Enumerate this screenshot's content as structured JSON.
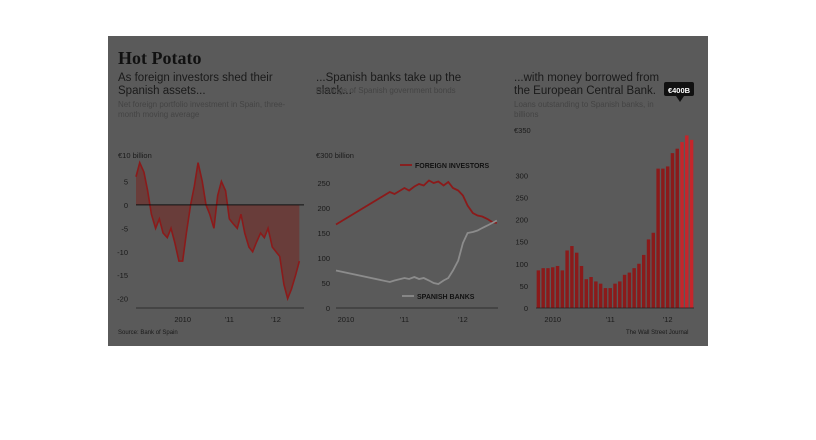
{
  "headline": "Hot Potato",
  "panels": [
    {
      "subtitle": "As foreign investors shed their Spanish assets...",
      "note": "Net foreign portfolio investment in Spain, three-month moving average",
      "unit_label": "€10 billion",
      "source": "Source: Bank of Spain"
    },
    {
      "subtitle": "...Spanish banks take up the slack...",
      "note": "Holdings of Spanish government bonds",
      "unit_label": "€300 billion",
      "legend": [
        "FOREIGN INVESTORS",
        "SPANISH BANKS"
      ]
    },
    {
      "subtitle": "...with money borrowed from the European Central Bank.",
      "note": "Loans outstanding to Spanish banks, in billions",
      "unit_label": "€350",
      "callout": "€400B",
      "credit": "The Wall Street Journal"
    }
  ],
  "colors": {
    "background": "#5a5a5a",
    "red": "#8b1a1a",
    "gray_line": "#8c8c8c",
    "zero_line": "#111111"
  },
  "chart_data": [
    {
      "type": "area",
      "title": "As foreign investors shed their Spanish assets...",
      "ylabel": "€10 billion",
      "ylim": [
        -22,
        10
      ],
      "yticks": [
        5,
        0,
        -5,
        -10,
        -15,
        -20
      ],
      "xticks": [
        {
          "t": 2010.0,
          "label": "2010"
        },
        {
          "t": 2011.0,
          "label": "'11"
        },
        {
          "t": 2012.0,
          "label": "'12"
        }
      ],
      "xlim": [
        2009.0,
        2012.6
      ],
      "series": [
        {
          "x": [
            2009.0,
            2009.08,
            2009.17,
            2009.25,
            2009.33,
            2009.42,
            2009.5,
            2009.58,
            2009.67,
            2009.75,
            2009.83,
            2009.92,
            2010.0,
            2010.08,
            2010.17,
            2010.25,
            2010.33,
            2010.42,
            2010.5,
            2010.58,
            2010.67,
            2010.75,
            2010.83,
            2010.92,
            2011.0,
            2011.08,
            2011.17,
            2011.25,
            2011.33,
            2011.42,
            2011.5,
            2011.58,
            2011.67,
            2011.75,
            2011.83,
            2011.92,
            2012.0,
            2012.08,
            2012.17,
            2012.25,
            2012.33,
            2012.42,
            2012.5
          ],
          "y": [
            6,
            9,
            7,
            3,
            -2,
            -5,
            -3,
            -6,
            -7,
            -5,
            -8,
            -12,
            -12,
            -6,
            0,
            4,
            9,
            5,
            0,
            -2,
            -5,
            2,
            5,
            3,
            -3,
            -4,
            -5,
            -2,
            -6,
            -9,
            -10,
            -8,
            -6,
            -7,
            -5,
            -9,
            -10,
            -11,
            -17,
            -20,
            -18,
            -15,
            -12
          ]
        }
      ]
    },
    {
      "type": "line",
      "title": "...Spanish banks take up the slack...",
      "ylabel": "€300 billion",
      "ylim": [
        0,
        300
      ],
      "yticks": [
        250,
        200,
        150,
        100,
        50,
        0
      ],
      "xticks": [
        {
          "t": 2010.0,
          "label": "2010"
        },
        {
          "t": 2011.0,
          "label": "'11"
        },
        {
          "t": 2012.0,
          "label": "'12"
        }
      ],
      "xlim": [
        2009.83,
        2012.6
      ],
      "series": [
        {
          "name": "FOREIGN INVESTORS",
          "x": [
            2009.83,
            2010.75,
            2010.83,
            2011.0,
            2011.08,
            2011.17,
            2011.25,
            2011.33,
            2011.42,
            2011.5,
            2011.58,
            2011.67,
            2011.75,
            2011.83,
            2011.92,
            2012.0,
            2012.08,
            2012.17,
            2012.25,
            2012.33,
            2012.42,
            2012.5,
            2012.58
          ],
          "y": [
            167,
            232,
            228,
            240,
            235,
            243,
            248,
            245,
            255,
            250,
            253,
            245,
            252,
            240,
            235,
            225,
            205,
            190,
            185,
            183,
            178,
            172,
            170
          ]
        },
        {
          "name": "SPANISH BANKS",
          "x": [
            2009.83,
            2010.75,
            2010.83,
            2011.0,
            2011.08,
            2011.17,
            2011.25,
            2011.33,
            2011.42,
            2011.5,
            2011.58,
            2011.67,
            2011.75,
            2011.83,
            2011.92,
            2012.0,
            2012.08,
            2012.17,
            2012.25,
            2012.33,
            2012.42,
            2012.5,
            2012.58
          ],
          "y": [
            75,
            52,
            55,
            60,
            58,
            62,
            58,
            60,
            55,
            50,
            48,
            55,
            60,
            75,
            95,
            130,
            150,
            152,
            155,
            160,
            165,
            170,
            175
          ]
        }
      ]
    },
    {
      "type": "bar",
      "title": "...with money borrowed from the European Central Bank.",
      "ylabel": "€350",
      "ylim": [
        0,
        400
      ],
      "yticks": [
        350,
        300,
        250,
        200,
        150,
        100,
        50,
        0
      ],
      "xticks": [
        {
          "i": 3,
          "label": "2010"
        },
        {
          "i": 15,
          "label": "'11"
        },
        {
          "i": 27,
          "label": "'12"
        }
      ],
      "values": [
        85,
        90,
        90,
        92,
        95,
        85,
        130,
        140,
        125,
        95,
        65,
        70,
        60,
        55,
        45,
        45,
        55,
        60,
        75,
        80,
        90,
        100,
        120,
        155,
        170,
        315,
        315,
        320,
        350,
        360,
        375,
        390,
        380
      ]
    }
  ]
}
